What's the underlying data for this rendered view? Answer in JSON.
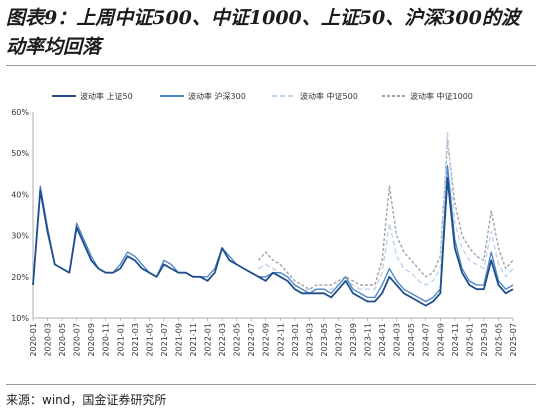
{
  "title": "图表9：上周中证500、中证1000、上证50、沪深300的波动率均回落",
  "source": "来源：wind，国金证券研究所",
  "chart_data": {
    "type": "line",
    "xlabel": "",
    "ylabel": "",
    "y_format": "percent",
    "ylim": [
      0.1,
      0.6
    ],
    "yticks": [
      0.1,
      0.2,
      0.3,
      0.4,
      0.5,
      0.6
    ],
    "legend_position": "top",
    "grid": false,
    "x_tick_labels": [
      "2020-01",
      "2020-03",
      "2020-05",
      "2020-07",
      "2020-09",
      "2020-11",
      "2021-01",
      "2021-03",
      "2021-05",
      "2021-07",
      "2021-09",
      "2021-11",
      "2022-01",
      "2022-03",
      "2022-05",
      "2022-07",
      "2022-09",
      "2022-11",
      "2023-01",
      "2023-03",
      "2023-05",
      "2023-07",
      "2023-09",
      "2023-11",
      "2024-01",
      "2024-03",
      "2024-05",
      "2024-07",
      "2024-09",
      "2024-11",
      "2025-01",
      "2025-03",
      "2025-05",
      "2025-07"
    ],
    "x": [
      "2020-01",
      "2020-02",
      "2020-03",
      "2020-04",
      "2020-05",
      "2020-06",
      "2020-07",
      "2020-08",
      "2020-09",
      "2020-10",
      "2020-11",
      "2020-12",
      "2021-01",
      "2021-02",
      "2021-03",
      "2021-04",
      "2021-05",
      "2021-06",
      "2021-07",
      "2021-08",
      "2021-09",
      "2021-10",
      "2021-11",
      "2021-12",
      "2022-01",
      "2022-02",
      "2022-03",
      "2022-04",
      "2022-05",
      "2022-06",
      "2022-07",
      "2022-08",
      "2022-09",
      "2022-10",
      "2022-11",
      "2022-12",
      "2023-01",
      "2023-02",
      "2023-03",
      "2023-04",
      "2023-05",
      "2023-06",
      "2023-07",
      "2023-08",
      "2023-09",
      "2023-10",
      "2023-11",
      "2023-12",
      "2024-01",
      "2024-02",
      "2024-03",
      "2024-04",
      "2024-05",
      "2024-06",
      "2024-07",
      "2024-08",
      "2024-09",
      "2024-10",
      "2024-11",
      "2024-12",
      "2025-01",
      "2025-02",
      "2025-03",
      "2025-04",
      "2025-05",
      "2025-06",
      "2025-07"
    ],
    "series": [
      {
        "name": "波动率 上证50",
        "color": "#1f4e8c",
        "dash": "",
        "width": 1.8,
        "values": [
          0.18,
          0.41,
          0.31,
          0.23,
          0.22,
          0.21,
          0.32,
          0.28,
          0.24,
          0.22,
          0.21,
          0.21,
          0.22,
          0.25,
          0.24,
          0.22,
          0.21,
          0.2,
          0.23,
          0.22,
          0.21,
          0.21,
          0.2,
          0.2,
          0.19,
          0.21,
          0.27,
          0.24,
          0.23,
          0.22,
          0.21,
          0.2,
          0.19,
          0.21,
          0.2,
          0.19,
          0.17,
          0.16,
          0.16,
          0.16,
          0.16,
          0.15,
          0.17,
          0.19,
          0.16,
          0.15,
          0.14,
          0.14,
          0.16,
          0.2,
          0.18,
          0.16,
          0.15,
          0.14,
          0.13,
          0.14,
          0.16,
          0.44,
          0.27,
          0.21,
          0.18,
          0.17,
          0.17,
          0.24,
          0.18,
          0.16,
          0.17
        ]
      },
      {
        "name": "波动率 沪深300",
        "color": "#4a82c3",
        "dash": "",
        "width": 1.3,
        "values": [
          0.18,
          0.42,
          0.32,
          0.23,
          0.22,
          0.21,
          0.33,
          0.29,
          0.25,
          0.22,
          0.21,
          0.21,
          0.23,
          0.26,
          0.25,
          0.23,
          0.21,
          0.2,
          0.24,
          0.23,
          0.21,
          0.21,
          0.2,
          0.2,
          0.2,
          0.22,
          0.27,
          0.25,
          0.23,
          0.22,
          0.21,
          0.2,
          0.2,
          0.21,
          0.21,
          0.2,
          0.18,
          0.17,
          0.16,
          0.17,
          0.17,
          0.16,
          0.18,
          0.2,
          0.17,
          0.16,
          0.15,
          0.15,
          0.18,
          0.22,
          0.19,
          0.17,
          0.16,
          0.15,
          0.14,
          0.15,
          0.17,
          0.47,
          0.29,
          0.22,
          0.19,
          0.18,
          0.18,
          0.26,
          0.19,
          0.17,
          0.18
        ]
      },
      {
        "name": "波动率 中证500",
        "color": "#bcd4ee",
        "dash": "5 3",
        "width": 1.4,
        "values": [
          null,
          null,
          null,
          null,
          null,
          null,
          null,
          null,
          null,
          null,
          null,
          null,
          null,
          null,
          null,
          null,
          null,
          null,
          null,
          null,
          null,
          null,
          null,
          null,
          null,
          null,
          null,
          null,
          null,
          null,
          null,
          0.22,
          0.23,
          0.22,
          0.21,
          0.2,
          0.18,
          0.17,
          0.17,
          0.17,
          0.17,
          0.17,
          0.18,
          0.19,
          0.18,
          0.17,
          0.17,
          0.17,
          0.21,
          0.33,
          0.25,
          0.22,
          0.21,
          0.19,
          0.18,
          0.19,
          0.22,
          0.55,
          0.33,
          0.27,
          0.24,
          0.23,
          0.22,
          0.31,
          0.23,
          0.2,
          0.22
        ]
      },
      {
        "name": "波动率 中证1000",
        "color": "#a3a3a3",
        "dash": "3 2",
        "width": 1.4,
        "values": [
          null,
          null,
          null,
          null,
          null,
          null,
          null,
          null,
          null,
          null,
          null,
          null,
          null,
          null,
          null,
          null,
          null,
          null,
          null,
          null,
          null,
          null,
          null,
          null,
          null,
          null,
          null,
          null,
          null,
          null,
          null,
          0.24,
          0.26,
          0.24,
          0.23,
          0.21,
          0.19,
          0.18,
          0.17,
          0.18,
          0.18,
          0.18,
          0.19,
          0.2,
          0.19,
          0.18,
          0.18,
          0.18,
          0.24,
          0.42,
          0.3,
          0.26,
          0.24,
          0.22,
          0.2,
          0.21,
          0.25,
          0.53,
          0.38,
          0.3,
          0.27,
          0.25,
          0.24,
          0.36,
          0.27,
          0.22,
          0.24
        ]
      }
    ]
  }
}
